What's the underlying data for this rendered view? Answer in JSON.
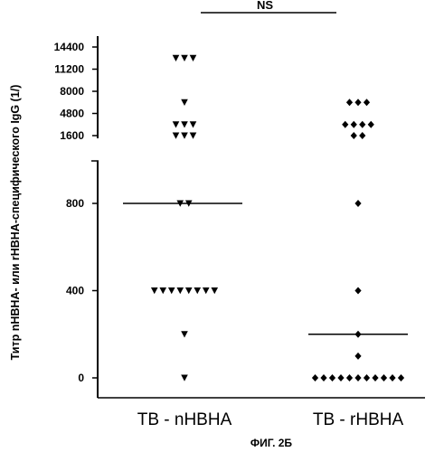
{
  "figure_caption": "ФИГ. 2Б",
  "significance_label": "NS",
  "chart_data": {
    "type": "scatter",
    "ylabel": "Титр nHBHA- или rHBHA-специфического IgG (1/)",
    "categories": [
      "TB - nHBHA",
      "TB - rHBHA"
    ],
    "y_axis_segments": [
      {
        "range": [
          0,
          1000
        ],
        "ticks": [
          0,
          400,
          800
        ],
        "tick_labels": [
          "0",
          "400",
          "800"
        ]
      },
      {
        "range": [
          1600,
          14400
        ],
        "ticks": [
          1600,
          4800,
          8000,
          11200,
          14400
        ],
        "tick_labels": [
          "1600",
          "4800",
          "8000",
          "11200",
          "14400"
        ]
      }
    ],
    "axis_break": [
      1000,
      1600
    ],
    "grid": false,
    "series": [
      {
        "category": "TB - nHBHA",
        "marker": "triangle-down",
        "values": [
          12800,
          12800,
          12800,
          6400,
          3200,
          3200,
          3200,
          1600,
          1600,
          1600,
          800,
          800,
          400,
          400,
          400,
          400,
          400,
          400,
          400,
          400,
          200,
          0
        ],
        "median": 800
      },
      {
        "category": "TB - rHBHA",
        "marker": "diamond",
        "values": [
          6400,
          6400,
          6400,
          3200,
          3200,
          3200,
          3200,
          1600,
          1600,
          800,
          400,
          200,
          100,
          0,
          0,
          0,
          0,
          0,
          0,
          0,
          0,
          0,
          0,
          0
        ],
        "median": 200
      }
    ]
  }
}
